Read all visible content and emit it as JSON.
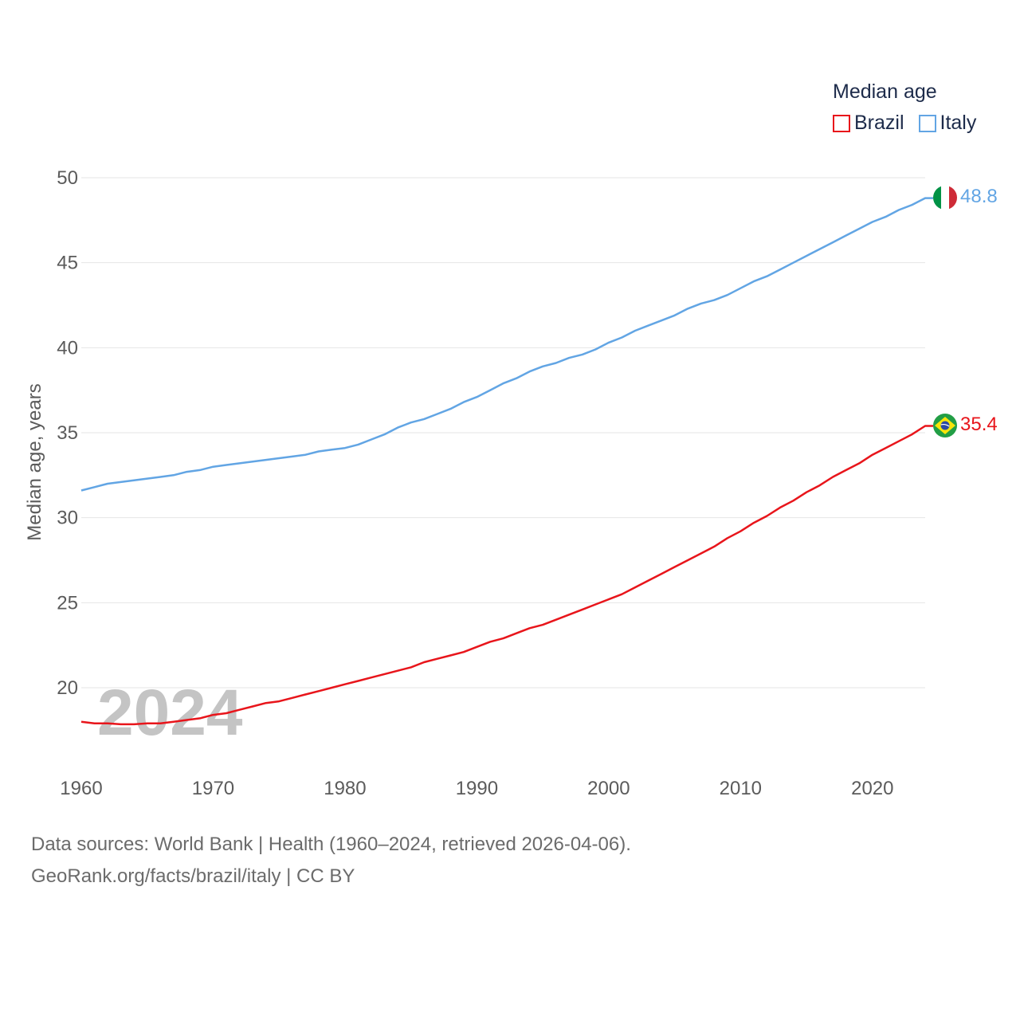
{
  "legend": {
    "title": "Median age",
    "brazil_label": "Brazil",
    "italy_label": "Italy"
  },
  "watermark_year": "2024",
  "footer": {
    "line1": "Data sources: World Bank | Health (1960–2024, retrieved 2026-04-06).",
    "line2": "GeoRank.org/facts/brazil/italy | CC BY"
  },
  "colors": {
    "brazil": "#e8151b",
    "italy": "#62a5e4",
    "grid": "#e6e6e6",
    "tick_text": "#5b5b5b"
  },
  "chart_data": {
    "type": "line",
    "title": "Median age",
    "xlabel": "",
    "ylabel": "Median age, years",
    "xlim": [
      1960,
      2024
    ],
    "ylim": [
      17,
      50
    ],
    "x_ticks": [
      1960,
      1970,
      1980,
      1990,
      2000,
      2010,
      2020
    ],
    "y_ticks": [
      20,
      25,
      30,
      35,
      40,
      45,
      50
    ],
    "grid": true,
    "legend_position": "top-right",
    "x": [
      1960,
      1961,
      1962,
      1963,
      1964,
      1965,
      1966,
      1967,
      1968,
      1969,
      1970,
      1971,
      1972,
      1973,
      1974,
      1975,
      1976,
      1977,
      1978,
      1979,
      1980,
      1981,
      1982,
      1983,
      1984,
      1985,
      1986,
      1987,
      1988,
      1989,
      1990,
      1991,
      1992,
      1993,
      1994,
      1995,
      1996,
      1997,
      1998,
      1999,
      2000,
      2001,
      2002,
      2003,
      2004,
      2005,
      2006,
      2007,
      2008,
      2009,
      2010,
      2011,
      2012,
      2013,
      2014,
      2015,
      2016,
      2017,
      2018,
      2019,
      2020,
      2021,
      2022,
      2023,
      2024
    ],
    "series": [
      {
        "name": "Brazil",
        "end_label": "35.4",
        "values": [
          18.0,
          17.9,
          17.9,
          17.85,
          17.85,
          17.9,
          17.9,
          18.0,
          18.1,
          18.2,
          18.4,
          18.5,
          18.7,
          18.9,
          19.1,
          19.2,
          19.4,
          19.6,
          19.8,
          20.0,
          20.2,
          20.4,
          20.6,
          20.8,
          21.0,
          21.2,
          21.5,
          21.7,
          21.9,
          22.1,
          22.4,
          22.7,
          22.9,
          23.2,
          23.5,
          23.7,
          24.0,
          24.3,
          24.6,
          24.9,
          25.2,
          25.5,
          25.9,
          26.3,
          26.7,
          27.1,
          27.5,
          27.9,
          28.3,
          28.8,
          29.2,
          29.7,
          30.1,
          30.6,
          31.0,
          31.5,
          31.9,
          32.4,
          32.8,
          33.2,
          33.7,
          34.1,
          34.5,
          34.9,
          35.4
        ]
      },
      {
        "name": "Italy",
        "end_label": "48.8",
        "values": [
          31.6,
          31.8,
          32.0,
          32.1,
          32.2,
          32.3,
          32.4,
          32.5,
          32.7,
          32.8,
          33.0,
          33.1,
          33.2,
          33.3,
          33.4,
          33.5,
          33.6,
          33.7,
          33.9,
          34.0,
          34.1,
          34.3,
          34.6,
          34.9,
          35.3,
          35.6,
          35.8,
          36.1,
          36.4,
          36.8,
          37.1,
          37.5,
          37.9,
          38.2,
          38.6,
          38.9,
          39.1,
          39.4,
          39.6,
          39.9,
          40.3,
          40.6,
          41.0,
          41.3,
          41.6,
          41.9,
          42.3,
          42.6,
          42.8,
          43.1,
          43.5,
          43.9,
          44.2,
          44.6,
          45.0,
          45.4,
          45.8,
          46.2,
          46.6,
          47.0,
          47.4,
          47.7,
          48.1,
          48.4,
          48.8
        ]
      }
    ]
  }
}
